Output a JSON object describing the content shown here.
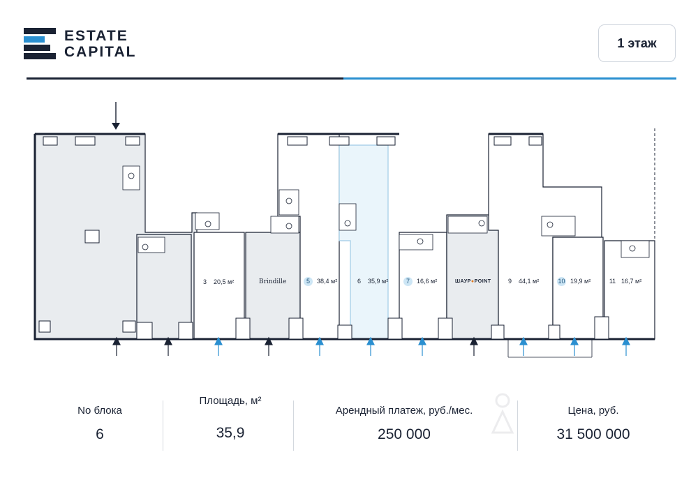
{
  "header": {
    "logo_line1": "ESTATE",
    "logo_line2": "CAPITAL",
    "floor_button": "1 этаж"
  },
  "colors": {
    "brand_dark": "#1a2233",
    "brand_blue": "#2a8fd0",
    "occupied_fill": "#e9ecef",
    "selected_fill": "#eaf5fb",
    "badge_fill": "#cde6f5"
  },
  "plan": {
    "units": [
      {
        "number": "3",
        "area": "20,5 м²",
        "highlighted": false
      },
      {
        "number": "5",
        "area": "38,4 м²",
        "highlighted": true
      },
      {
        "number": "6",
        "area": "35,9 м²",
        "highlighted": false,
        "selected": true
      },
      {
        "number": "7",
        "area": "16,6 м²",
        "highlighted": true
      },
      {
        "number": "9",
        "area": "44,1 м²",
        "highlighted": false
      },
      {
        "number": "10",
        "area": "19,9 м²",
        "highlighted": true
      },
      {
        "number": "11",
        "area": "16,7 м²",
        "highlighted": false
      }
    ],
    "tenants": [
      {
        "name": "Brindille"
      },
      {
        "name_part1": "ШАУР",
        "name_part2": "POINT"
      }
    ]
  },
  "stats": [
    {
      "label": "No блока",
      "value": "6"
    },
    {
      "label": "Площадь, м²",
      "value": "35,9"
    },
    {
      "label": "Арендный платеж, руб./мес.",
      "value": "250 000"
    },
    {
      "label": "Цена, руб.",
      "value": "31 500 000"
    }
  ]
}
